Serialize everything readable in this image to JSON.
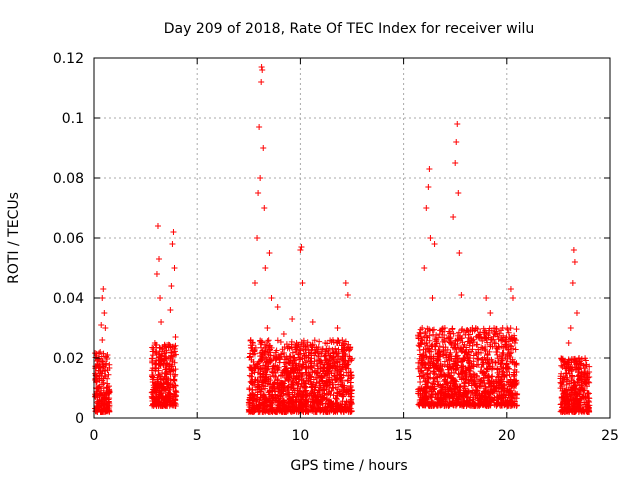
{
  "chart_data": {
    "type": "scatter",
    "title": "Day 209 of 2018, Rate Of TEC Index for receiver wilu",
    "xlabel": "GPS time / hours",
    "ylabel": "ROTI / TECUs",
    "xlim": [
      0,
      25
    ],
    "ylim": [
      0,
      0.12
    ],
    "x_ticks": [
      0,
      5,
      10,
      15,
      20,
      25
    ],
    "x_tick_labels": [
      "0",
      "5",
      "10",
      "15",
      "20",
      "25"
    ],
    "y_ticks": [
      0,
      0.02,
      0.04,
      0.06,
      0.08,
      0.1,
      0.12
    ],
    "y_tick_labels": [
      "0",
      "0.02",
      "0.04",
      "0.06",
      "0.08",
      "0.1",
      "0.12"
    ],
    "grid": true,
    "marker": "+",
    "color": "#ff0000",
    "series": [
      {
        "name": "ROTI",
        "points": [
          [
            0.1,
            0.012
          ],
          [
            0.15,
            0.008
          ],
          [
            0.2,
            0.018
          ],
          [
            0.25,
            0.005
          ],
          [
            0.3,
            0.022
          ],
          [
            0.35,
            0.031
          ],
          [
            0.4,
            0.04
          ],
          [
            0.45,
            0.043
          ],
          [
            0.5,
            0.035
          ],
          [
            0.55,
            0.014
          ],
          [
            0.6,
            0.009
          ],
          [
            0.65,
            0.021
          ],
          [
            0.3,
            0.015
          ],
          [
            0.4,
            0.026
          ],
          [
            0.5,
            0.003
          ],
          [
            0.55,
            0.03
          ],
          [
            0.2,
            0.01
          ],
          [
            0.45,
            0.017
          ],
          [
            2.85,
            0.012
          ],
          [
            2.95,
            0.025
          ],
          [
            3.05,
            0.048
          ],
          [
            3.1,
            0.064
          ],
          [
            3.15,
            0.053
          ],
          [
            3.2,
            0.04
          ],
          [
            3.25,
            0.032
          ],
          [
            3.3,
            0.015
          ],
          [
            3.4,
            0.009
          ],
          [
            3.5,
            0.02
          ],
          [
            3.6,
            0.013
          ],
          [
            3.7,
            0.036
          ],
          [
            3.75,
            0.044
          ],
          [
            3.8,
            0.058
          ],
          [
            3.85,
            0.062
          ],
          [
            3.9,
            0.05
          ],
          [
            3.95,
            0.027
          ],
          [
            3.0,
            0.008
          ],
          [
            3.55,
            0.018
          ],
          [
            3.65,
            0.011
          ],
          [
            7.6,
            0.012
          ],
          [
            7.7,
            0.025
          ],
          [
            7.8,
            0.045
          ],
          [
            7.9,
            0.06
          ],
          [
            7.95,
            0.075
          ],
          [
            8.0,
            0.097
          ],
          [
            8.05,
            0.08
          ],
          [
            8.1,
            0.112
          ],
          [
            8.12,
            0.117
          ],
          [
            8.15,
            0.116
          ],
          [
            8.2,
            0.09
          ],
          [
            8.25,
            0.07
          ],
          [
            8.3,
            0.05
          ],
          [
            8.4,
            0.03
          ],
          [
            8.5,
            0.055
          ],
          [
            8.6,
            0.04
          ],
          [
            8.7,
            0.02
          ],
          [
            8.8,
            0.015
          ],
          [
            8.9,
            0.037
          ],
          [
            9.0,
            0.01
          ],
          [
            9.2,
            0.028
          ],
          [
            9.4,
            0.015
          ],
          [
            9.6,
            0.033
          ],
          [
            9.8,
            0.022
          ],
          [
            10.0,
            0.056
          ],
          [
            10.05,
            0.057
          ],
          [
            10.1,
            0.045
          ],
          [
            10.2,
            0.02
          ],
          [
            10.4,
            0.012
          ],
          [
            10.6,
            0.032
          ],
          [
            10.8,
            0.018
          ],
          [
            11.0,
            0.01
          ],
          [
            11.2,
            0.025
          ],
          [
            11.5,
            0.015
          ],
          [
            11.8,
            0.03
          ],
          [
            12.0,
            0.012
          ],
          [
            12.2,
            0.045
          ],
          [
            12.3,
            0.041
          ],
          [
            12.4,
            0.02
          ],
          [
            7.65,
            0.008
          ],
          [
            8.35,
            0.006
          ],
          [
            9.1,
            0.004
          ],
          [
            9.9,
            0.002
          ],
          [
            10.9,
            0.006
          ],
          [
            11.9,
            0.008
          ],
          [
            15.8,
            0.012
          ],
          [
            15.9,
            0.03
          ],
          [
            16.0,
            0.05
          ],
          [
            16.1,
            0.07
          ],
          [
            16.2,
            0.077
          ],
          [
            16.25,
            0.083
          ],
          [
            16.3,
            0.06
          ],
          [
            16.4,
            0.04
          ],
          [
            16.5,
            0.058
          ],
          [
            16.6,
            0.025
          ],
          [
            16.8,
            0.018
          ],
          [
            17.0,
            0.03
          ],
          [
            17.2,
            0.015
          ],
          [
            17.4,
            0.067
          ],
          [
            17.5,
            0.085
          ],
          [
            17.55,
            0.092
          ],
          [
            17.6,
            0.098
          ],
          [
            17.65,
            0.075
          ],
          [
            17.7,
            0.055
          ],
          [
            17.8,
            0.041
          ],
          [
            18.0,
            0.022
          ],
          [
            18.3,
            0.018
          ],
          [
            18.5,
            0.03
          ],
          [
            18.8,
            0.015
          ],
          [
            19.0,
            0.04
          ],
          [
            19.2,
            0.035
          ],
          [
            19.4,
            0.025
          ],
          [
            19.6,
            0.012
          ],
          [
            19.8,
            0.03
          ],
          [
            20.0,
            0.018
          ],
          [
            20.2,
            0.043
          ],
          [
            20.3,
            0.04
          ],
          [
            20.4,
            0.008
          ],
          [
            16.15,
            0.005
          ],
          [
            17.1,
            0.006
          ],
          [
            18.1,
            0.007
          ],
          [
            19.1,
            0.004
          ],
          [
            20.1,
            0.005
          ],
          [
            22.7,
            0.012
          ],
          [
            22.9,
            0.018
          ],
          [
            23.0,
            0.025
          ],
          [
            23.1,
            0.03
          ],
          [
            23.2,
            0.045
          ],
          [
            23.25,
            0.056
          ],
          [
            23.3,
            0.052
          ],
          [
            23.4,
            0.035
          ],
          [
            23.5,
            0.02
          ],
          [
            23.6,
            0.015
          ],
          [
            23.7,
            0.01
          ],
          [
            23.8,
            0.013
          ],
          [
            23.9,
            0.008
          ],
          [
            23.15,
            0.006
          ],
          [
            23.55,
            0.003
          ]
        ],
        "dense_bands": [
          {
            "x_range": [
              0.05,
              0.75
            ],
            "y_range": [
              0.002,
              0.022
            ]
          },
          {
            "x_range": [
              2.8,
              4.0
            ],
            "y_range": [
              0.004,
              0.025
            ]
          },
          {
            "x_range": [
              7.5,
              12.5
            ],
            "y_range": [
              0.002,
              0.026
            ]
          },
          {
            "x_range": [
              15.7,
              20.5
            ],
            "y_range": [
              0.004,
              0.03
            ]
          },
          {
            "x_range": [
              22.6,
              24.0
            ],
            "y_range": [
              0.002,
              0.02
            ]
          }
        ]
      }
    ]
  }
}
